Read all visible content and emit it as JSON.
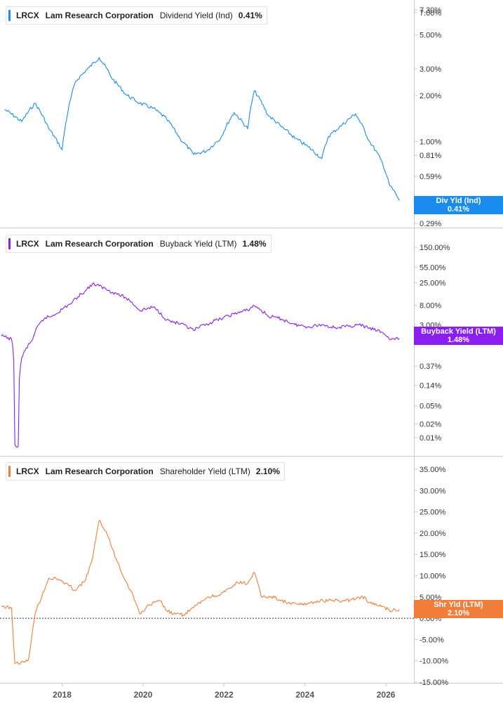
{
  "ticker": "LRCX",
  "company": "Lam Research Corporation",
  "x_ticks": [
    "2018",
    "2020",
    "2022",
    "2024",
    "2026"
  ],
  "chart_data": [
    {
      "type": "line",
      "metric": "Dividend Yield (Ind)",
      "current_value": "0.41%",
      "tag_label": "Div Yld (Ind)",
      "color": "#1a8cf0",
      "scale": "log",
      "y_ticks": [
        "7.30%",
        "7.00%",
        "5.00%",
        "3.00%",
        "2.00%",
        "1.00%",
        "0.81%",
        "0.59%",
        "0.37%",
        "0.29%"
      ],
      "x": [
        "2016-08",
        "2017-01",
        "2017-05",
        "2017-09",
        "2018-01",
        "2018-05",
        "2018-09",
        "2018-12",
        "2019-04",
        "2019-08",
        "2019-12",
        "2020-04",
        "2020-08",
        "2020-12",
        "2021-04",
        "2021-08",
        "2021-12",
        "2022-04",
        "2022-08",
        "2022-10",
        "2023-02",
        "2023-06",
        "2023-10",
        "2024-02",
        "2024-06",
        "2024-08",
        "2024-12",
        "2025-04",
        "2025-08",
        "2025-12",
        "2026-02",
        "2026-04",
        "2026-05"
      ],
      "values": [
        1.62,
        1.35,
        1.78,
        1.22,
        0.88,
        2.48,
        3.05,
        3.55,
        2.55,
        2.02,
        1.78,
        1.65,
        1.4,
        1.04,
        0.82,
        0.87,
        1.05,
        1.55,
        1.21,
        2.15,
        1.49,
        1.25,
        1.05,
        0.92,
        0.77,
        1.08,
        1.28,
        1.52,
        1.01,
        0.72,
        0.52,
        0.45,
        0.41
      ]
    },
    {
      "type": "line",
      "metric": "Buyback Yield (LTM)",
      "current_value": "1.48%",
      "tag_label": "Buyback Yield (LTM)",
      "color": "#8a1ff0",
      "scale": "log",
      "y_ticks": [
        "150.00%",
        "55.00%",
        "25.00%",
        "8.00%",
        "3.00%",
        "1.48%",
        "0.37%",
        "0.14%",
        "0.05%",
        "0.02%",
        "0.01%"
      ],
      "x": [
        "2016-07",
        "2016-10",
        "2016-11",
        "2016-12",
        "2017-01",
        "2017-04",
        "2017-08",
        "2017-10",
        "2018-01",
        "2018-04",
        "2018-08",
        "2018-10",
        "2018-12",
        "2019-04",
        "2019-08",
        "2019-12",
        "2020-04",
        "2020-08",
        "2020-12",
        "2021-04",
        "2021-08",
        "2021-12",
        "2022-04",
        "2022-08",
        "2022-10",
        "2023-02",
        "2023-06",
        "2023-10",
        "2024-02",
        "2024-06",
        "2024-10",
        "2025-02",
        "2025-05",
        "2025-08",
        "2025-12",
        "2026-02",
        "2026-05"
      ],
      "values": [
        1.7,
        1.45,
        0.007,
        0.0065,
        0.55,
        1.32,
        4.3,
        4.6,
        6.5,
        9.2,
        16.8,
        23.5,
        21.2,
        15.5,
        11.5,
        6.1,
        7.3,
        3.8,
        3.1,
        2.25,
        3.1,
        4.05,
        5.15,
        6.3,
        7.85,
        4.65,
        4.0,
        3.0,
        2.7,
        3.0,
        2.6,
        2.75,
        3.0,
        2.5,
        2.05,
        1.45,
        1.48
      ]
    },
    {
      "type": "line",
      "metric": "Shareholder Yield (LTM)",
      "current_value": "2.10%",
      "tag_label": "Shr Yld (LTM)",
      "color": "#f07e3a",
      "scale": "linear",
      "ylim": [
        -15,
        35
      ],
      "y_ticks": [
        "35.00%",
        "30.00%",
        "25.00%",
        "20.00%",
        "15.00%",
        "10.00%",
        "5.00%",
        "2.10%",
        "0.00%",
        "-5.00%",
        "-10.00%",
        "-15.00%"
      ],
      "y_tick_values": [
        35,
        30,
        25,
        20,
        15,
        10,
        5,
        2.1,
        0,
        -5,
        -10,
        -15
      ],
      "zero_line": true,
      "x": [
        "2016-07",
        "2016-10",
        "2016-11",
        "2017-02",
        "2017-03",
        "2017-05",
        "2017-09",
        "2017-12",
        "2018-03",
        "2018-05",
        "2018-08",
        "2018-10",
        "2018-12",
        "2019-02",
        "2019-05",
        "2019-08",
        "2019-10",
        "2019-12",
        "2020-03",
        "2020-06",
        "2020-08",
        "2020-10",
        "2021-01",
        "2021-04",
        "2021-08",
        "2021-12",
        "2022-03",
        "2022-05",
        "2022-08",
        "2022-10",
        "2022-12",
        "2023-04",
        "2023-08",
        "2023-12",
        "2024-04",
        "2024-08",
        "2024-12",
        "2025-04",
        "2025-06",
        "2025-08",
        "2025-12",
        "2026-02",
        "2026-05"
      ],
      "values": [
        2.8,
        2.4,
        -10.6,
        -10.3,
        -9.8,
        1.2,
        9.4,
        9.2,
        7.6,
        6.5,
        9.1,
        14.0,
        23.0,
        20.5,
        14.0,
        8.5,
        5.5,
        1.0,
        3.2,
        4.1,
        1.8,
        1.0,
        0.8,
        2.5,
        4.9,
        5.6,
        7.1,
        8.4,
        8.2,
        10.8,
        5.2,
        4.9,
        3.5,
        3.2,
        3.9,
        4.2,
        4.1,
        4.5,
        5.2,
        3.7,
        2.8,
        1.9,
        2.1
      ]
    }
  ]
}
